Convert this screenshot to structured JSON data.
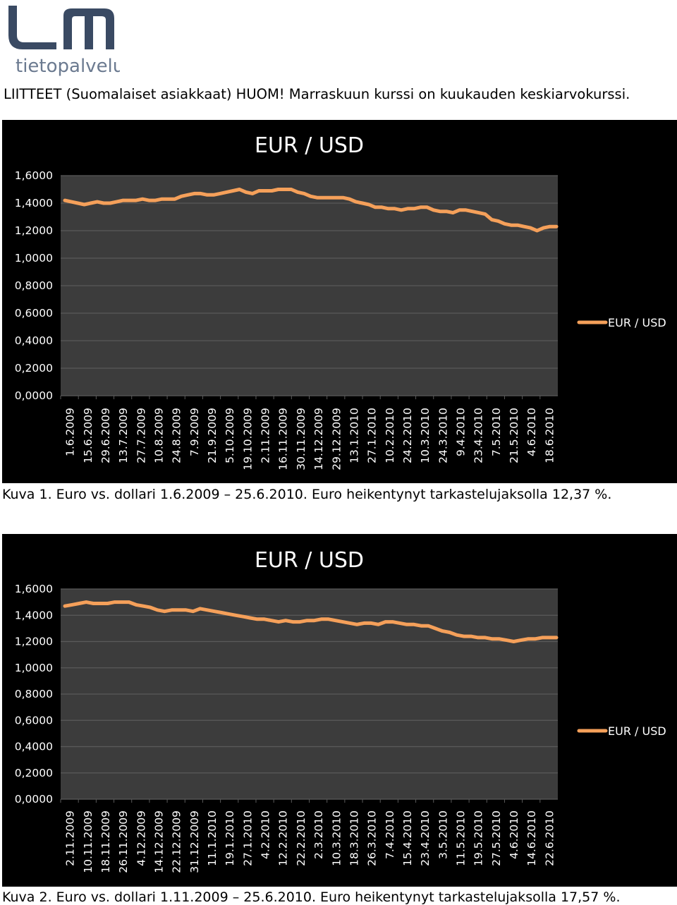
{
  "logo": {
    "text": "tietopalvelut",
    "color": "#3a4a63",
    "accent": "#6b7a90"
  },
  "heading": "LIITTEET (Suomalaiset asiakkaat) HUOM! Marraskuun kurssi on kuukauden keskiarvokurssi.",
  "colors": {
    "background": "#000000",
    "plot_area": "#3c3c3c",
    "grid": "#5a5a5a",
    "series": "#f5a05a",
    "text": "#ffffff"
  },
  "chart_data": [
    {
      "type": "line",
      "title": "EUR / USD",
      "legend": [
        "EUR / USD"
      ],
      "legend_position": "right",
      "grid": true,
      "ylim": [
        0,
        1.6
      ],
      "ytick_labels": [
        "0,0000",
        "0,2000",
        "0,4000",
        "0,6000",
        "0,8000",
        "1,0000",
        "1,2000",
        "1,4000",
        "1,6000"
      ],
      "xtick_labels": [
        "1.6.2009",
        "15.6.2009",
        "29.6.2009",
        "13.7.2009",
        "27.7.2009",
        "10.8.2009",
        "24.8.2009",
        "7.9.2009",
        "21.9.2009",
        "5.10.2009",
        "19.10.2009",
        "2.11.2009",
        "16.11.2009",
        "30.11.2009",
        "14.12.2009",
        "29.12.2009",
        "13.1.2010",
        "27.1.2010",
        "10.2.2010",
        "24.2.2010",
        "10.3.2010",
        "24.3.2010",
        "9.4.2010",
        "23.4.2010",
        "7.5.2010",
        "21.5.2010",
        "4.6.2010",
        "18.6.2010"
      ],
      "series": [
        {
          "name": "EUR / USD",
          "values": [
            1.42,
            1.41,
            1.4,
            1.39,
            1.4,
            1.41,
            1.4,
            1.4,
            1.41,
            1.42,
            1.42,
            1.42,
            1.43,
            1.42,
            1.42,
            1.43,
            1.43,
            1.43,
            1.45,
            1.46,
            1.47,
            1.47,
            1.46,
            1.46,
            1.47,
            1.48,
            1.49,
            1.5,
            1.48,
            1.47,
            1.49,
            1.49,
            1.49,
            1.5,
            1.5,
            1.5,
            1.48,
            1.47,
            1.45,
            1.44,
            1.44,
            1.44,
            1.44,
            1.44,
            1.43,
            1.41,
            1.4,
            1.39,
            1.37,
            1.37,
            1.36,
            1.36,
            1.35,
            1.36,
            1.36,
            1.37,
            1.37,
            1.35,
            1.34,
            1.34,
            1.33,
            1.35,
            1.35,
            1.34,
            1.33,
            1.32,
            1.28,
            1.27,
            1.25,
            1.24,
            1.24,
            1.23,
            1.22,
            1.2,
            1.22,
            1.23,
            1.23
          ]
        }
      ],
      "caption": "Kuva 1. Euro vs. dollari 1.6.2009 – 25.6.2010. Euro heikentynyt tarkastelujaksolla 12,37 %."
    },
    {
      "type": "line",
      "title": "EUR / USD",
      "legend": [
        "EUR / USD"
      ],
      "legend_position": "right",
      "grid": true,
      "ylim": [
        0,
        1.6
      ],
      "ytick_labels": [
        "0,0000",
        "0,2000",
        "0,4000",
        "0,6000",
        "0,8000",
        "1,0000",
        "1,2000",
        "1,4000",
        "1,6000"
      ],
      "xtick_labels": [
        "2.11.2009",
        "10.11.2009",
        "18.11.2009",
        "26.11.2009",
        "4.12.2009",
        "14.12.2009",
        "22.12.2009",
        "31.12.2009",
        "11.1.2010",
        "19.1.2010",
        "27.1.2010",
        "4.2.2010",
        "12.2.2010",
        "22.2.2010",
        "2.3.2010",
        "10.3.2010",
        "18.3.2010",
        "26.3.2010",
        "7.4.2010",
        "15.4.2010",
        "23.4.2010",
        "3.5.2010",
        "11.5.2010",
        "19.5.2010",
        "27.5.2010",
        "4.6.2010",
        "14.6.2010",
        "22.6.2010"
      ],
      "series": [
        {
          "name": "EUR / USD",
          "values": [
            1.47,
            1.48,
            1.49,
            1.5,
            1.49,
            1.49,
            1.49,
            1.5,
            1.5,
            1.5,
            1.48,
            1.47,
            1.46,
            1.44,
            1.43,
            1.44,
            1.44,
            1.44,
            1.43,
            1.45,
            1.44,
            1.43,
            1.42,
            1.41,
            1.4,
            1.39,
            1.38,
            1.37,
            1.37,
            1.36,
            1.35,
            1.36,
            1.35,
            1.35,
            1.36,
            1.36,
            1.37,
            1.37,
            1.36,
            1.35,
            1.34,
            1.33,
            1.34,
            1.34,
            1.33,
            1.35,
            1.35,
            1.34,
            1.33,
            1.33,
            1.32,
            1.32,
            1.3,
            1.28,
            1.27,
            1.25,
            1.24,
            1.24,
            1.23,
            1.23,
            1.22,
            1.22,
            1.21,
            1.2,
            1.21,
            1.22,
            1.22,
            1.23,
            1.23,
            1.23
          ]
        }
      ],
      "caption": "Kuva 2. Euro vs. dollari 1.11.2009 – 25.6.2010. Euro heikentynyt tarkastelujaksolla 17,57 %."
    }
  ]
}
